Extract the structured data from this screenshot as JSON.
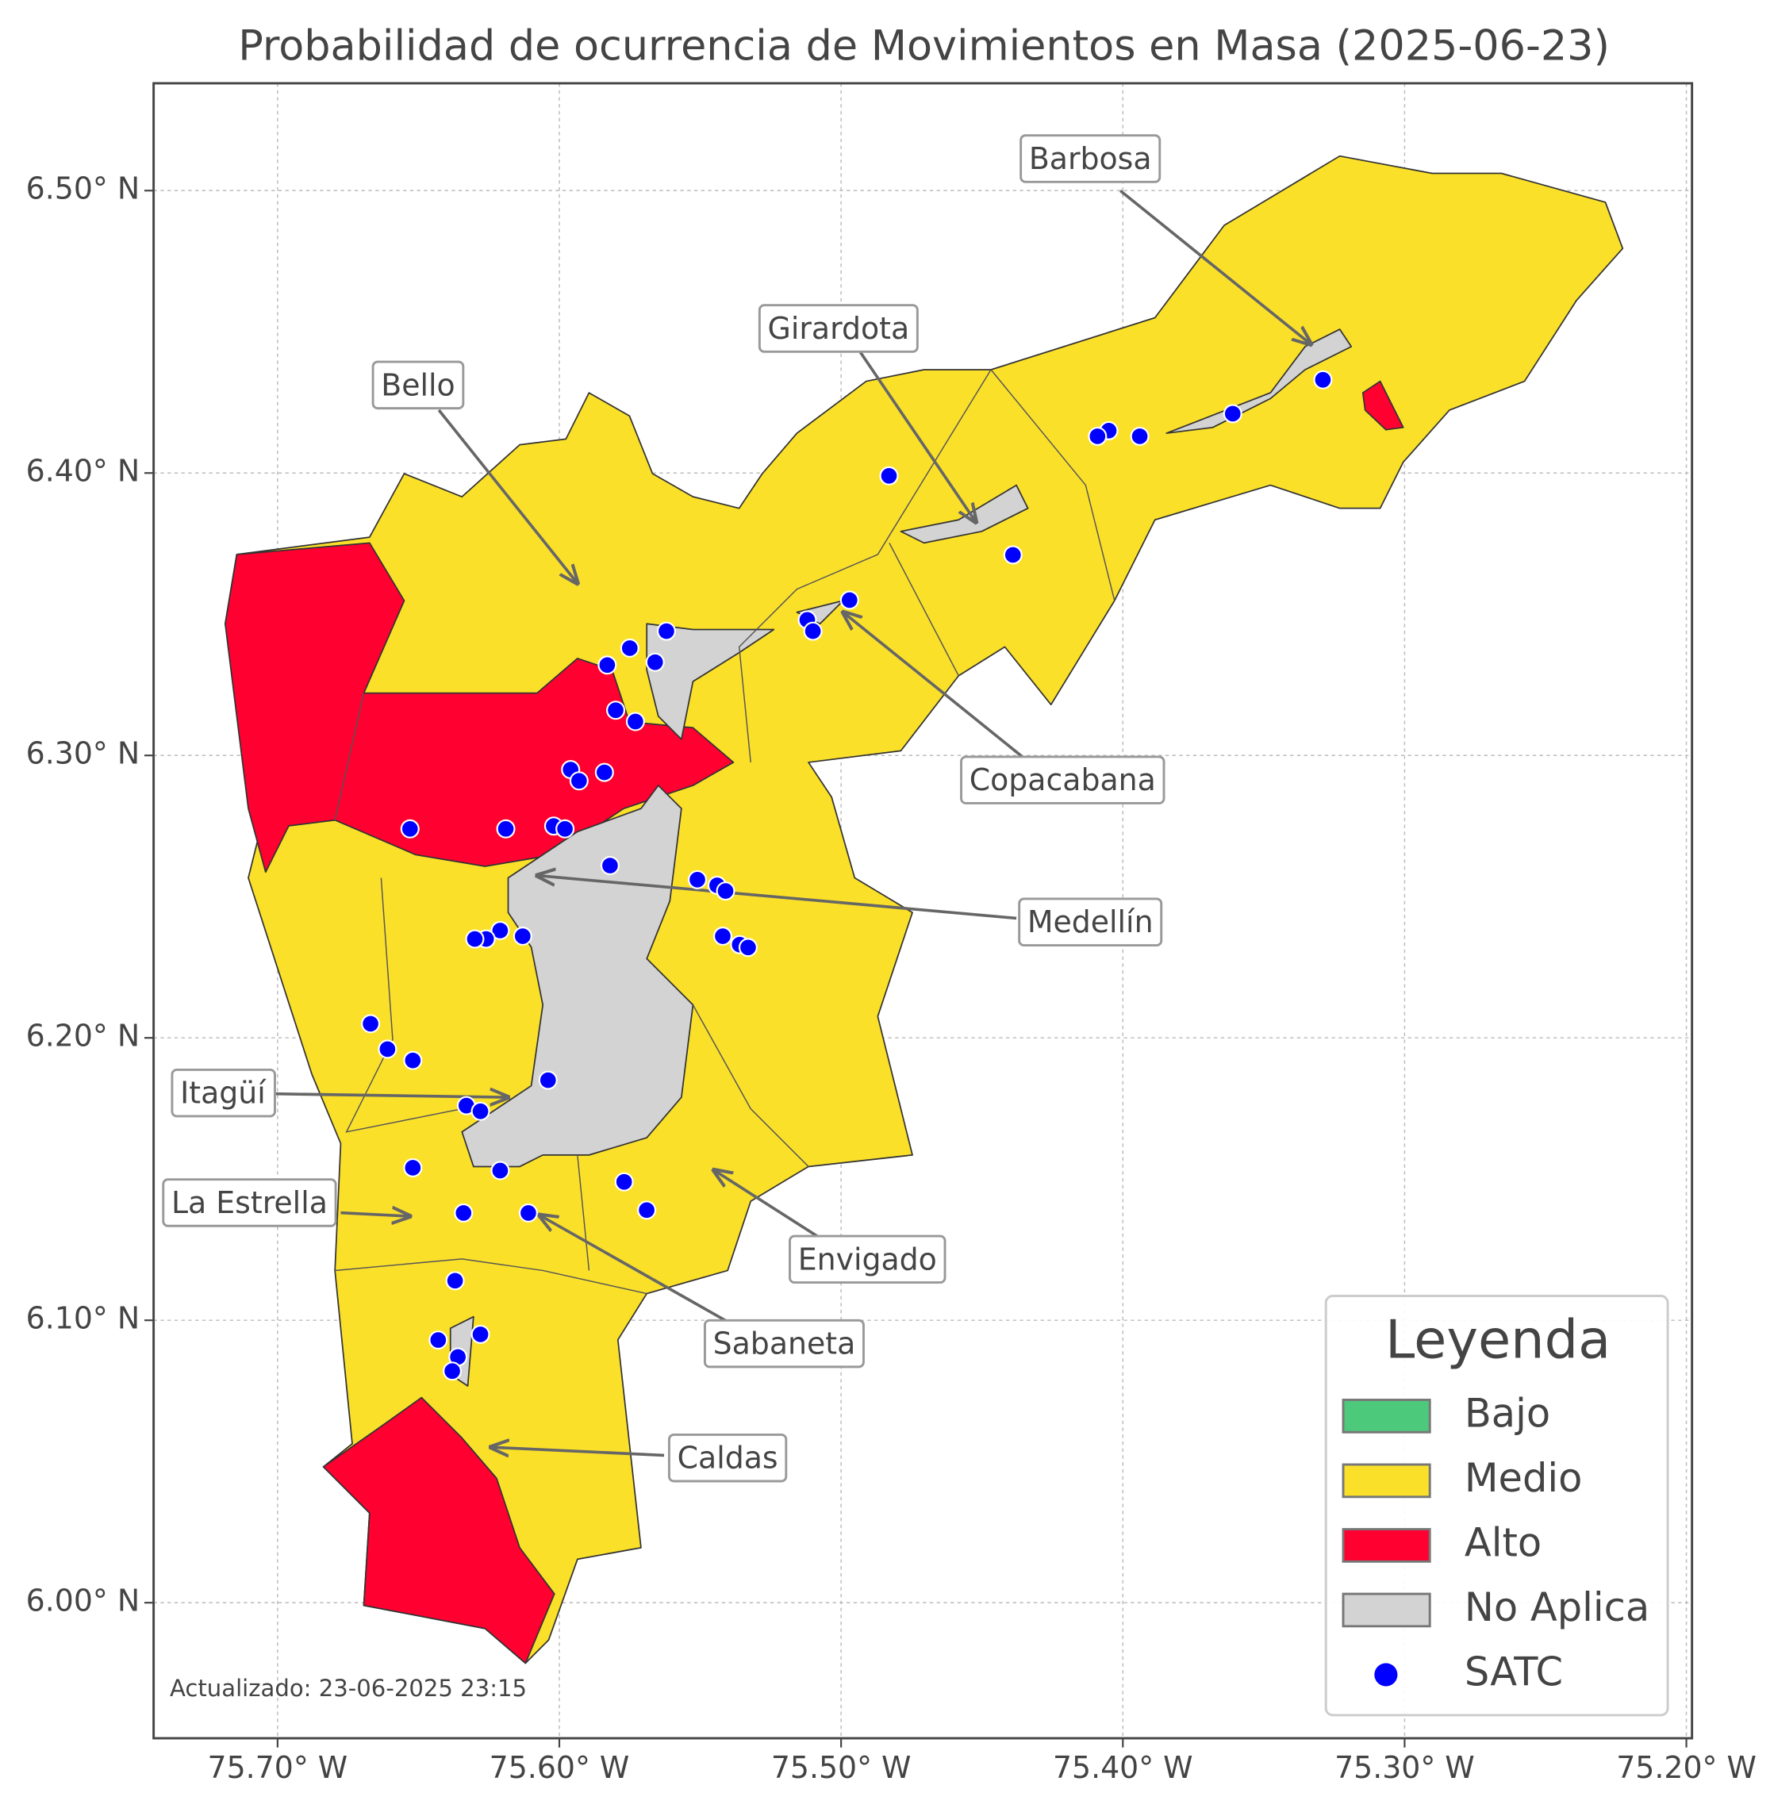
{
  "chart_data": {
    "type": "map",
    "title": "Probabilidad de ocurrencia de Movimientos en Masa (2025-06-23)",
    "xlim": [
      -75.744,
      -75.198
    ],
    "ylim": [
      5.952,
      6.538
    ],
    "xticks": [
      {
        "value": -75.7,
        "label": "75.70° W"
      },
      {
        "value": -75.6,
        "label": "75.60° W"
      },
      {
        "value": -75.5,
        "label": "75.50° W"
      },
      {
        "value": -75.4,
        "label": "75.40° W"
      },
      {
        "value": -75.3,
        "label": "75.30° W"
      },
      {
        "value": -75.2,
        "label": "75.20° W"
      }
    ],
    "yticks": [
      {
        "value": 6.0,
        "label": "6.00° N"
      },
      {
        "value": 6.1,
        "label": "6.10° N"
      },
      {
        "value": 6.2,
        "label": "6.20° N"
      },
      {
        "value": 6.3,
        "label": "6.30° N"
      },
      {
        "value": 6.4,
        "label": "6.40° N"
      },
      {
        "value": 6.5,
        "label": "6.50° N"
      }
    ],
    "grid": true,
    "categories": [
      {
        "name": "Bajo",
        "color": "#4cc97a"
      },
      {
        "name": "Medio",
        "color": "#fbe02a"
      },
      {
        "name": "Alto",
        "color": "#ff0030"
      },
      {
        "name": "No Aplica",
        "color": "#d3d3d3"
      }
    ],
    "series": [
      {
        "name": "SATC",
        "color": "#0000ff",
        "x": [
          -75.329,
          -75.361,
          -75.394,
          -75.405,
          -75.409,
          -75.483,
          -75.439,
          -75.497,
          -75.512,
          -75.51,
          -75.562,
          -75.575,
          -75.566,
          -75.583,
          -75.58,
          -75.573,
          -75.596,
          -75.593,
          -75.584,
          -75.653,
          -75.619,
          -75.602,
          -75.598,
          -75.582,
          -75.551,
          -75.544,
          -75.541,
          -75.542,
          -75.536,
          -75.533,
          -75.621,
          -75.626,
          -75.63,
          -75.613,
          -75.667,
          -75.661,
          -75.652,
          -75.604,
          -75.633,
          -75.628,
          -75.621,
          -75.652,
          -75.577,
          -75.569,
          -75.634,
          -75.611,
          -75.637,
          -75.643,
          -75.628,
          -75.636,
          -75.638
        ],
        "y": [
          6.433,
          6.421,
          6.413,
          6.415,
          6.413,
          6.399,
          6.371,
          6.355,
          6.348,
          6.344,
          6.344,
          6.338,
          6.333,
          6.332,
          6.316,
          6.312,
          6.295,
          6.291,
          6.294,
          6.274,
          6.274,
          6.275,
          6.274,
          6.261,
          6.256,
          6.254,
          6.252,
          6.236,
          6.233,
          6.232,
          6.238,
          6.235,
          6.235,
          6.236,
          6.205,
          6.196,
          6.192,
          6.185,
          6.176,
          6.174,
          6.153,
          6.154,
          6.149,
          6.139,
          6.138,
          6.138,
          6.114,
          6.093,
          6.095,
          6.087,
          6.082
        ]
      }
    ],
    "legend": {
      "title": "Leyenda",
      "position": "lower right"
    },
    "annotations": [
      "Barbosa",
      "Girardota",
      "Bello",
      "Copacabana",
      "Medellín",
      "Itagüí",
      "La Estrella",
      "Envigado",
      "Sabaneta",
      "Caldas"
    ],
    "footnote": "Actualizado: 23-06-2025 23:15"
  }
}
